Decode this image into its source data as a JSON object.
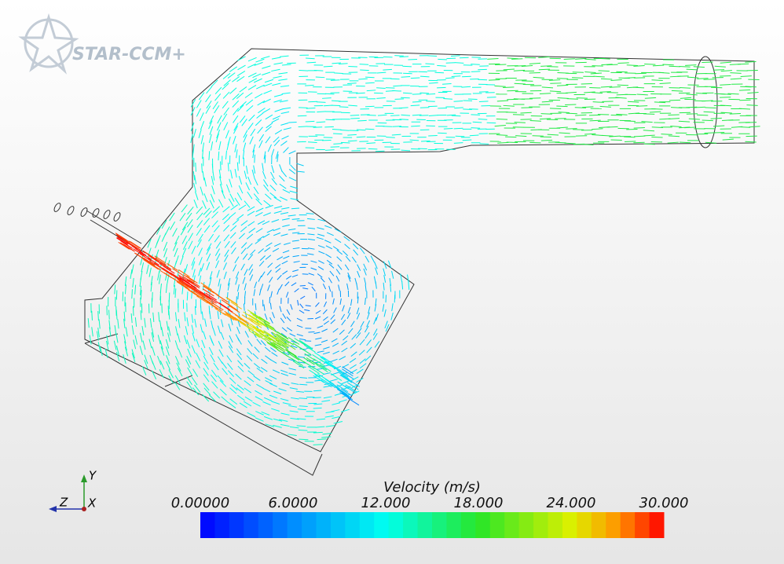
{
  "logo": {
    "text": "STAR-CCM+"
  },
  "colorbar": {
    "title": "Velocity (m/s)",
    "range": [
      0,
      30
    ],
    "ticks": [
      {
        "value": 0,
        "label": "0.00000"
      },
      {
        "value": 6,
        "label": "6.0000"
      },
      {
        "value": 12,
        "label": "12.000"
      },
      {
        "value": 18,
        "label": "18.000"
      },
      {
        "value": 24,
        "label": "24.000"
      },
      {
        "value": 30,
        "label": "30.000"
      }
    ]
  },
  "triad": {
    "y": "Y",
    "z": "Z",
    "x": "X"
  }
}
